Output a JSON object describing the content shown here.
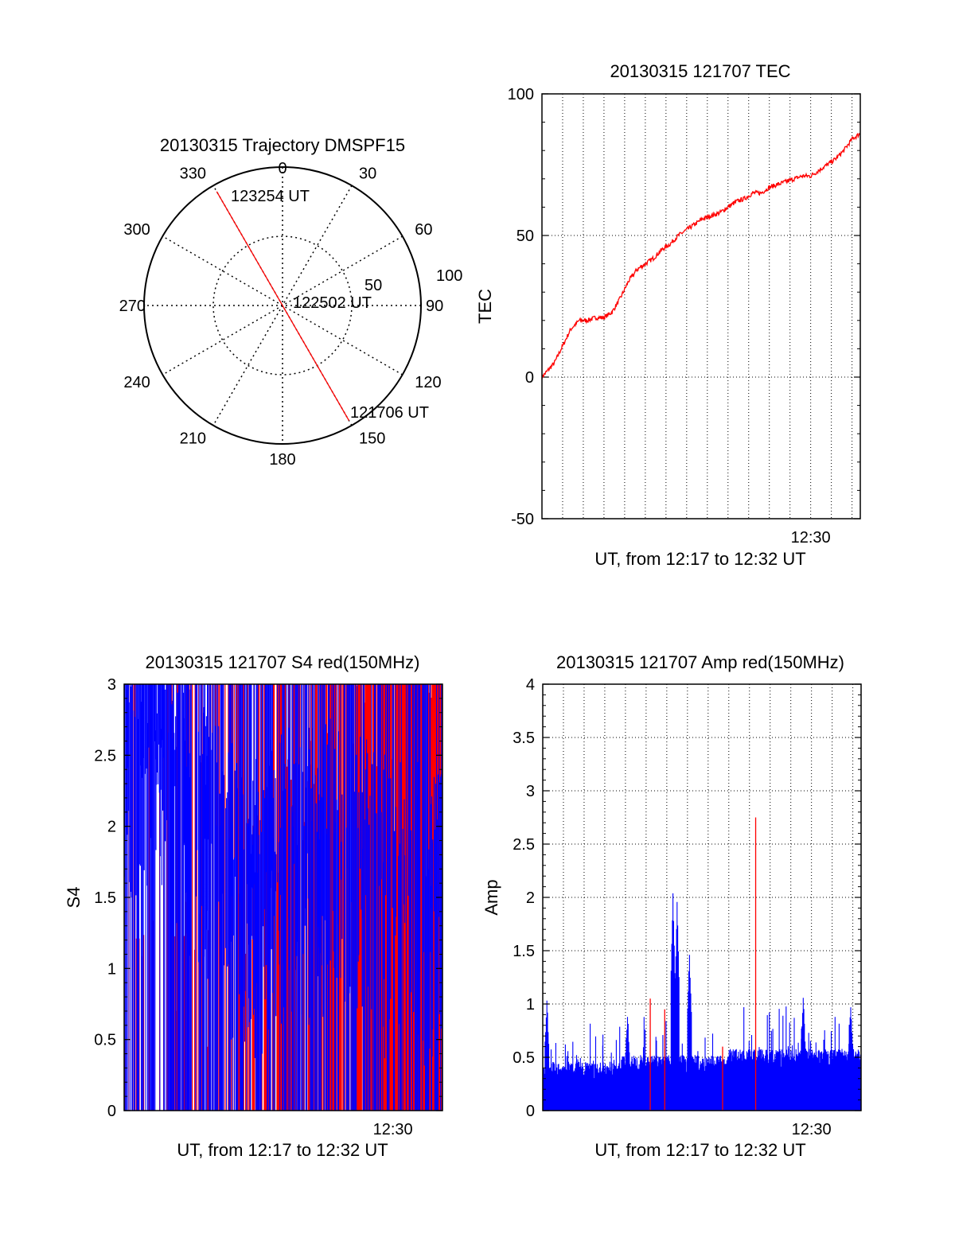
{
  "colors": {
    "red": "#ff0000",
    "blue": "#0000ff",
    "axis": "#000000"
  },
  "chart_data": [
    {
      "id": "polar",
      "type": "polar-trajectory",
      "title": "20130315 Trajectory DMSPF15",
      "angle_labels": [
        "0",
        "30",
        "60",
        "90",
        "120",
        "150",
        "180",
        "210",
        "240",
        "270",
        "300",
        "330"
      ],
      "radius_labels": [
        "50",
        "100"
      ],
      "rmax": 100,
      "start_label": "123254 UT",
      "mid_label": "122502 UT",
      "end_label": "121706 UT",
      "path": [
        {
          "az": 330,
          "r": 95
        },
        {
          "az": 150,
          "r": 96
        }
      ]
    },
    {
      "id": "tec",
      "type": "line",
      "title": "20130315 121707 TEC",
      "ylabel": "TEC",
      "xlabel": "UT, from 12:17 to 12:32 UT",
      "ylim": [
        -50,
        100
      ],
      "yticks": [
        "-50",
        "0",
        "50",
        "100"
      ],
      "xlim": [
        0,
        15.4
      ],
      "xtick_label": "12:30",
      "xtick_value": 13,
      "grid": true,
      "series": [
        {
          "color": "red",
          "x": [
            0,
            0.6,
            1,
            1.4,
            1.8,
            2.2,
            2.6,
            3,
            3.4,
            3.8,
            4.2,
            4.6,
            5,
            5.4,
            5.8,
            6.2,
            6.6,
            7,
            7.4,
            7.8,
            8.2,
            8.6,
            9,
            9.4,
            9.8,
            10.2,
            10.6,
            11,
            11.4,
            11.8,
            12.2,
            12.6,
            13,
            13.4,
            13.8,
            14.2,
            14.6,
            15,
            15.4
          ],
          "y": [
            0,
            5,
            11,
            17,
            20,
            20,
            21,
            21,
            23,
            28,
            34,
            38,
            40,
            42,
            45,
            47,
            50,
            52,
            54,
            56,
            57,
            58,
            60,
            62,
            63,
            65,
            65,
            67,
            68,
            69,
            70,
            71,
            71,
            73,
            75,
            77,
            80,
            84,
            86
          ]
        }
      ]
    },
    {
      "id": "s4",
      "type": "bar-noise",
      "title": "20130315 121707 S4 red(150MHz)",
      "ylabel": "S4",
      "xlabel": "UT, from 12:17 to 12:32 UT",
      "ylim": [
        0,
        3
      ],
      "yticks": [
        "0",
        "0.5",
        "1",
        "1.5",
        "2",
        "2.5",
        "3"
      ],
      "xlim": [
        0,
        15.4
      ],
      "xtick_label": "12:30",
      "xtick_value": 13,
      "grid": false,
      "red_profile": {
        "x": [
          0,
          4,
          5,
          7,
          9,
          11,
          13,
          15.4
        ],
        "y": [
          0,
          0.4,
          1.0,
          1.2,
          1.6,
          2.0,
          2.4,
          2.6
        ]
      },
      "blue_profile": {
        "x": [
          0,
          2,
          4,
          6,
          8,
          10,
          12,
          15.4
        ],
        "y": [
          2.8,
          2.6,
          2.0,
          1.6,
          1.8,
          1.9,
          1.7,
          1.5
        ]
      }
    },
    {
      "id": "amp",
      "type": "bar-noise",
      "title": "20130315 121707 Amp red(150MHz)",
      "ylabel": "Amp",
      "xlabel": "UT, from 12:17 to 12:32 UT",
      "ylim": [
        0,
        4
      ],
      "yticks": [
        "0",
        "0.5",
        "1",
        "1.5",
        "2",
        "2.5",
        "3",
        "3.5",
        "4"
      ],
      "xlim": [
        0,
        15.4
      ],
      "xtick_label": "12:30",
      "xtick_value": 13,
      "grid": true,
      "blue_peaks": [
        {
          "x": 6.3,
          "y": 2.1
        },
        {
          "x": 6.5,
          "y": 2.0
        },
        {
          "x": 7.1,
          "y": 1.5
        },
        {
          "x": 4.1,
          "y": 0.95
        },
        {
          "x": 0.2,
          "y": 1.05
        },
        {
          "x": 14.9,
          "y": 1.0
        },
        {
          "x": 12.6,
          "y": 1.1
        }
      ],
      "red_peaks": [
        {
          "x": 10.3,
          "y": 2.75
        },
        {
          "x": 5.2,
          "y": 1.05
        },
        {
          "x": 5.9,
          "y": 0.95
        },
        {
          "x": 8.7,
          "y": 0.6
        }
      ]
    }
  ]
}
